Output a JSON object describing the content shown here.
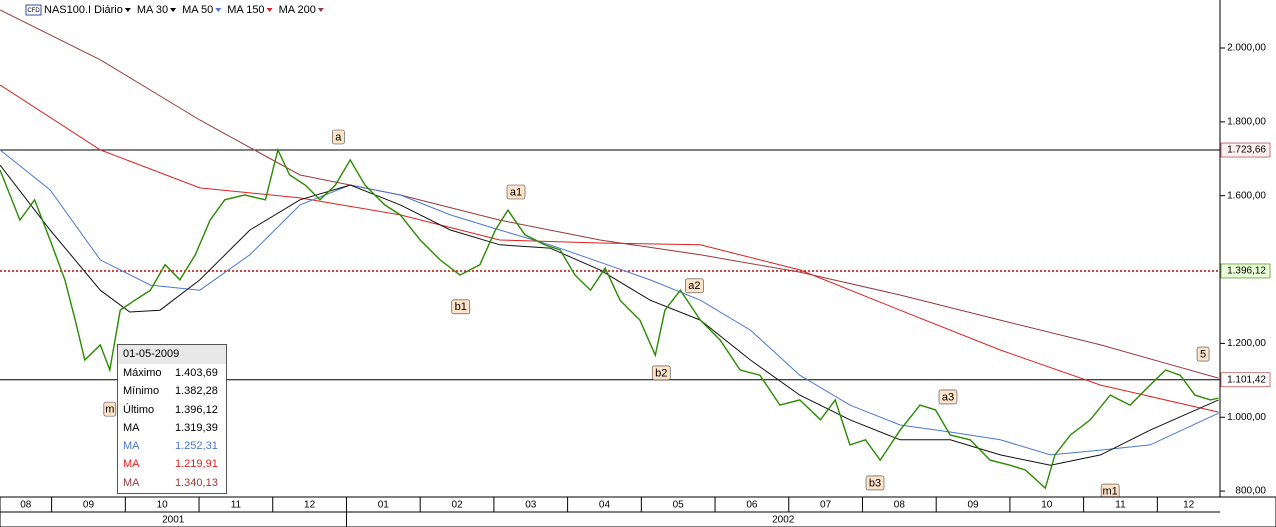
{
  "chart_data": {
    "type": "line",
    "header": "NAS100.I Diário",
    "xlim": [
      0.3,
      16.85
    ],
    "ylim": [
      784,
      2130
    ],
    "yticks": [
      {
        "value": 800,
        "label": "800,00"
      },
      {
        "value": 1000,
        "label": "1.000,00"
      },
      {
        "value": 1200,
        "label": "1.200,00"
      },
      {
        "value": 1600,
        "label": "1.600,00"
      },
      {
        "value": 1800,
        "label": "1.800,00"
      },
      {
        "value": 2000,
        "label": "2.000,00"
      }
    ],
    "xticks": [
      0,
      1,
      2,
      3,
      4,
      5,
      6,
      7,
      8,
      9,
      10,
      11,
      12,
      13,
      14,
      15,
      16
    ],
    "month_labels": [
      "08",
      "09",
      "10",
      "11",
      "12",
      "01",
      "02",
      "03",
      "04",
      "05",
      "06",
      "07",
      "08",
      "09",
      "10",
      "11",
      "12"
    ],
    "years": [
      {
        "label": "2001",
        "start": 0
      },
      {
        "label": "2002",
        "start": 5
      }
    ],
    "series": [
      {
        "name": "NAS100.I Diário",
        "color": "#2a8a00",
        "x": [
          0.3,
          0.57,
          0.77,
          0.98,
          1.18,
          1.32,
          1.45,
          1.66,
          1.79,
          1.93,
          2.13,
          2.34,
          2.54,
          2.74,
          2.95,
          3.15,
          3.35,
          3.62,
          3.9,
          4.07,
          4.23,
          4.44,
          4.64,
          4.85,
          5.05,
          5.25,
          5.52,
          5.73,
          6.0,
          6.27,
          6.54,
          6.81,
          7.02,
          7.19,
          7.42,
          7.69,
          7.9,
          8.1,
          8.31,
          8.51,
          8.71,
          8.98,
          9.19,
          9.32,
          9.53,
          9.8,
          10.07,
          10.34,
          10.61,
          10.88,
          11.15,
          11.43,
          11.63,
          11.83,
          12.04,
          12.24,
          12.51,
          12.78,
          12.99,
          13.19,
          13.46,
          13.73,
          14.0,
          14.21,
          14.48,
          14.61,
          14.82,
          15.09,
          15.36,
          15.63,
          15.9,
          16.11,
          16.31,
          16.51,
          16.72,
          16.83
        ],
        "values": [
          1670,
          1534,
          1589,
          1480,
          1372,
          1263,
          1155,
          1196,
          1128,
          1290,
          1317,
          1344,
          1413,
          1372,
          1440,
          1534,
          1589,
          1602,
          1589,
          1724,
          1656,
          1629,
          1589,
          1629,
          1697,
          1629,
          1575,
          1548,
          1480,
          1426,
          1385,
          1413,
          1507,
          1561,
          1494,
          1467,
          1453,
          1385,
          1344,
          1404,
          1317,
          1263,
          1168,
          1290,
          1344,
          1263,
          1209,
          1128,
          1114,
          1033,
          1047,
          993,
          1047,
          925,
          939,
          884,
          965,
          1033,
          1020,
          952,
          939,
          884,
          870,
          857,
          808,
          898,
          952,
          993,
          1060,
          1033,
          1087,
          1128,
          1114,
          1060,
          1047,
          1052
        ]
      },
      {
        "name": "MA 30",
        "color": "#111111",
        "x": [
          0.3,
          0.98,
          1.66,
          2.06,
          2.47,
          3.01,
          3.69,
          4.37,
          5.05,
          5.73,
          6.41,
          7.08,
          7.76,
          8.44,
          9.12,
          9.8,
          10.48,
          11.15,
          11.83,
          12.51,
          13.19,
          13.87,
          14.55,
          15.23,
          15.9,
          16.83
        ],
        "values": [
          1683,
          1507,
          1344,
          1285,
          1290,
          1372,
          1507,
          1589,
          1629,
          1575,
          1507,
          1467,
          1458,
          1399,
          1317,
          1263,
          1155,
          1060,
          993,
          939,
          939,
          898,
          870,
          898,
          965,
          1047
        ]
      },
      {
        "name": "MA 50",
        "color": "#4a78d0",
        "x": [
          0.3,
          0.98,
          1.66,
          2.34,
          3.01,
          3.69,
          4.37,
          5.05,
          5.73,
          6.41,
          7.08,
          7.76,
          8.44,
          9.12,
          9.8,
          10.48,
          11.15,
          11.83,
          12.51,
          13.19,
          13.87,
          14.55,
          15.23,
          15.9,
          16.83
        ],
        "values": [
          1724,
          1616,
          1426,
          1358,
          1344,
          1440,
          1575,
          1629,
          1602,
          1548,
          1507,
          1467,
          1420,
          1372,
          1317,
          1236,
          1114,
          1033,
          979,
          960,
          939,
          898,
          911,
          925,
          1011
        ]
      },
      {
        "name": "MA 150",
        "color": "#e02020",
        "x": [
          0.3,
          1.66,
          3.01,
          4.37,
          5.73,
          7.08,
          8.44,
          9.8,
          11.15,
          12.51,
          13.87,
          15.23,
          16.83
        ],
        "values": [
          1900,
          1724,
          1621,
          1594,
          1548,
          1480,
          1472,
          1467,
          1399,
          1290,
          1182,
          1087,
          1014
        ]
      },
      {
        "name": "MA 200",
        "color": "#9a3a3a",
        "x": [
          0.3,
          1.66,
          3.01,
          4.37,
          5.73,
          7.08,
          8.44,
          9.8,
          11.15,
          12.51,
          13.87,
          15.23,
          16.83
        ],
        "values": [
          2103,
          1968,
          1805,
          1656,
          1602,
          1534,
          1480,
          1440,
          1393,
          1331,
          1263,
          1196,
          1106
        ]
      }
    ],
    "levels": [
      {
        "value": 1723.66,
        "label": "1.723,66",
        "color": "#000000",
        "dash": false,
        "badge_bg": "#fff0f0",
        "badge_fg": "#b02020"
      },
      {
        "value": 1396.12,
        "label": "1.396,12",
        "color": "#d00000",
        "dash": true,
        "badge_bg": "#eaffd8",
        "badge_fg": "#2a7a00"
      },
      {
        "value": 1101.42,
        "label": "1.101,42",
        "color": "#000000",
        "dash": false,
        "badge_bg": "#ffffff",
        "badge_fg": "#b02020"
      }
    ],
    "annotations": [
      {
        "text": "a",
        "x": 4.89,
        "y": 1759
      },
      {
        "text": "a1",
        "x": 7.3,
        "y": 1610
      },
      {
        "text": "b1",
        "x": 6.55,
        "y": 1299
      },
      {
        "text": "a2",
        "x": 9.72,
        "y": 1356
      },
      {
        "text": "b2",
        "x": 9.27,
        "y": 1120
      },
      {
        "text": "a3",
        "x": 13.16,
        "y": 1055
      },
      {
        "text": "b3",
        "x": 12.17,
        "y": 822
      },
      {
        "text": "m1",
        "x": 15.36,
        "y": 800
      },
      {
        "text": "5",
        "x": 16.62,
        "y": 1171
      },
      {
        "text": "m",
        "x": 1.79,
        "y": 1022
      }
    ],
    "info_box": {
      "date": "01-05-2009",
      "rows": [
        {
          "label": "Máximo",
          "value": "1.403,69",
          "color": "#000000"
        },
        {
          "label": "Mínimo",
          "value": "1.382,28",
          "color": "#000000"
        },
        {
          "label": "Último",
          "value": "1.396,12",
          "color": "#000000"
        },
        {
          "label": "MA",
          "value": "1.319,39",
          "color": "#000000"
        },
        {
          "label": "MA",
          "value": "1.252,31",
          "color": "#4a78d0"
        },
        {
          "label": "MA",
          "value": "1.219,91",
          "color": "#e02020"
        },
        {
          "label": "MA",
          "value": "1.340,13",
          "color": "#9a3a3a"
        }
      ]
    }
  }
}
